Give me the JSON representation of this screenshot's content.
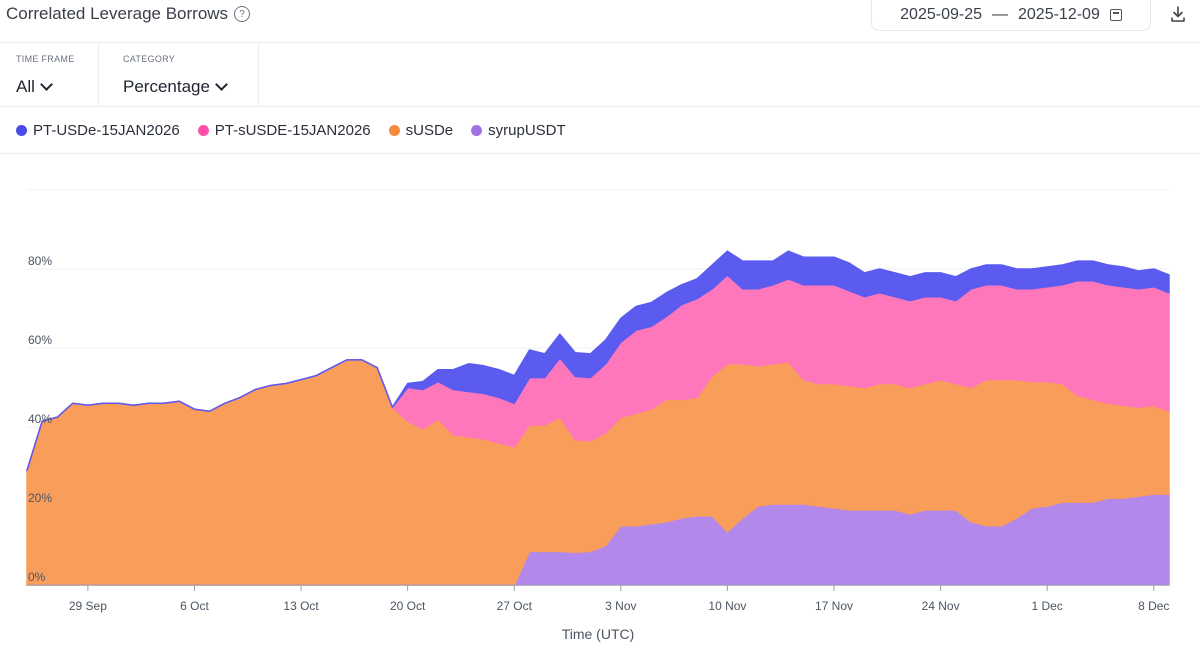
{
  "header": {
    "title": "Correlated Leverage Borrows",
    "help_icon": "question-circle-icon",
    "date_start": "2025-09-25",
    "date_sep": "—",
    "date_end": "2025-12-09",
    "calendar_icon": "calendar-icon",
    "download_icon": "download-icon"
  },
  "filters": [
    {
      "label": "TIME FRAME",
      "value": "All"
    },
    {
      "label": "CATEGORY",
      "value": "Percentage"
    }
  ],
  "chart_data": {
    "type": "area",
    "stacked": true,
    "xlabel": "Time (UTC)",
    "ylabel": "",
    "ylim": [
      0,
      100
    ],
    "y_ticks": [
      "0%",
      "20%",
      "40%",
      "60%",
      "80%"
    ],
    "y_tick_values": [
      0,
      20,
      40,
      60,
      80
    ],
    "x_tick_labels": [
      "29 Sep",
      "6 Oct",
      "13 Oct",
      "20 Oct",
      "27 Oct",
      "3 Nov",
      "10 Nov",
      "17 Nov",
      "24 Nov",
      "1 Dec",
      "8 Dec"
    ],
    "x_tick_dates": [
      "2025-09-29",
      "2025-10-06",
      "2025-10-13",
      "2025-10-20",
      "2025-10-27",
      "2025-11-03",
      "2025-11-10",
      "2025-11-17",
      "2025-11-24",
      "2025-12-01",
      "2025-12-08"
    ],
    "x": [
      "2025-09-25",
      "2025-09-26",
      "2025-09-27",
      "2025-09-28",
      "2025-09-29",
      "2025-09-30",
      "2025-10-01",
      "2025-10-02",
      "2025-10-03",
      "2025-10-04",
      "2025-10-05",
      "2025-10-06",
      "2025-10-07",
      "2025-10-08",
      "2025-10-09",
      "2025-10-10",
      "2025-10-11",
      "2025-10-12",
      "2025-10-13",
      "2025-10-14",
      "2025-10-15",
      "2025-10-16",
      "2025-10-17",
      "2025-10-18",
      "2025-10-19",
      "2025-10-20",
      "2025-10-21",
      "2025-10-22",
      "2025-10-23",
      "2025-10-24",
      "2025-10-25",
      "2025-10-26",
      "2025-10-27",
      "2025-10-28",
      "2025-10-29",
      "2025-10-30",
      "2025-10-31",
      "2025-11-01",
      "2025-11-02",
      "2025-11-03",
      "2025-11-04",
      "2025-11-05",
      "2025-11-06",
      "2025-11-07",
      "2025-11-08",
      "2025-11-09",
      "2025-11-10",
      "2025-11-11",
      "2025-11-12",
      "2025-11-13",
      "2025-11-14",
      "2025-11-15",
      "2025-11-16",
      "2025-11-17",
      "2025-11-18",
      "2025-11-19",
      "2025-11-20",
      "2025-11-21",
      "2025-11-22",
      "2025-11-23",
      "2025-11-24",
      "2025-11-25",
      "2025-11-26",
      "2025-11-27",
      "2025-11-28",
      "2025-11-29",
      "2025-11-30",
      "2025-12-01",
      "2025-12-02",
      "2025-12-03",
      "2025-12-04",
      "2025-12-05",
      "2025-12-06",
      "2025-12-07",
      "2025-12-08",
      "2025-12-09"
    ],
    "series": [
      {
        "name": "syrupUSDT",
        "color": "#b388eb",
        "values": [
          0,
          0,
          0,
          0,
          0,
          0,
          0,
          0,
          0,
          0,
          0,
          0,
          0,
          0,
          0,
          0,
          0,
          0,
          0,
          0,
          0,
          0,
          0,
          0,
          0,
          0,
          0,
          0,
          0,
          0,
          0,
          0,
          0,
          8.5,
          8.5,
          8.5,
          8.3,
          8.5,
          10,
          15,
          15,
          15.5,
          16,
          17,
          17.5,
          17.5,
          13.5,
          17,
          20,
          20.5,
          20.5,
          20.5,
          20,
          19.5,
          19,
          19,
          19,
          19,
          18,
          19,
          19,
          19,
          16,
          15,
          15,
          17,
          19.5,
          20,
          21,
          21,
          21,
          22,
          22,
          22.5,
          23,
          23
        ]
      },
      {
        "name": "sUSDe",
        "color": "#f99d5b",
        "values": [
          29,
          41.5,
          42.5,
          46,
          45.5,
          46,
          46,
          45.5,
          46,
          46,
          46.5,
          44.5,
          44,
          46,
          47.5,
          49.5,
          50.5,
          51,
          52,
          53,
          55,
          57,
          57,
          55,
          45,
          41.5,
          39.5,
          42,
          38,
          37.5,
          37,
          36,
          35,
          32,
          32,
          34,
          28.5,
          28,
          28.5,
          27.5,
          28.5,
          29,
          31,
          30,
          30,
          35.5,
          42.5,
          39,
          35.5,
          35.5,
          36,
          31.5,
          31,
          31.5,
          31.5,
          31,
          32,
          32,
          32,
          32,
          33,
          32,
          34,
          37,
          37,
          35,
          32,
          31.5,
          30,
          27,
          26,
          24,
          23.5,
          22.5,
          22.5,
          21
        ]
      },
      {
        "name": "PT-sUSDE-15JAN2026",
        "color": "#ff77bb",
        "values": [
          0,
          0,
          0,
          0,
          0,
          0,
          0,
          0,
          0,
          0,
          0,
          0,
          0,
          0,
          0,
          0,
          0,
          0,
          0,
          0,
          0,
          0,
          0,
          0,
          0,
          8.5,
          10,
          9.5,
          11.5,
          11.5,
          11.5,
          11.5,
          11,
          12,
          12,
          15,
          16,
          16,
          17.5,
          19,
          21,
          21,
          21,
          24,
          25,
          22,
          22.5,
          19,
          19.5,
          20,
          21,
          24,
          25,
          25,
          24,
          23,
          23,
          22,
          22,
          22,
          21,
          21,
          25,
          24,
          24,
          23,
          23.5,
          24,
          25,
          29,
          30,
          30,
          30,
          30,
          30,
          30
        ]
      },
      {
        "name": "PT-USDe-15JAN2026",
        "color": "#5b5bf0",
        "values": [
          0,
          0,
          0,
          0,
          0,
          0,
          0,
          0,
          0,
          0,
          0,
          0,
          0,
          0,
          0,
          0,
          0,
          0,
          0,
          0,
          0,
          0,
          0,
          0,
          0,
          1,
          2,
          3,
          5,
          7,
          7,
          7,
          7,
          7,
          6,
          6,
          6,
          6,
          6,
          6,
          6,
          6,
          6,
          5,
          5,
          6,
          6,
          7,
          7,
          6,
          7,
          7,
          7,
          7,
          7,
          6,
          6,
          6,
          6,
          6,
          6,
          6,
          5,
          5,
          5,
          5,
          5,
          5,
          5,
          5,
          5,
          5,
          5,
          4.5,
          4.5,
          4.5
        ]
      }
    ],
    "legend_order": [
      "PT-USDe-15JAN2026",
      "PT-sUSDE-15JAN2026",
      "sUSDe",
      "syrupUSDT"
    ],
    "legend_colors": [
      "#4a4ae8",
      "#ff4fa8",
      "#f58a3d",
      "#a071e3"
    ],
    "legend_placement": "top",
    "grid": true
  }
}
